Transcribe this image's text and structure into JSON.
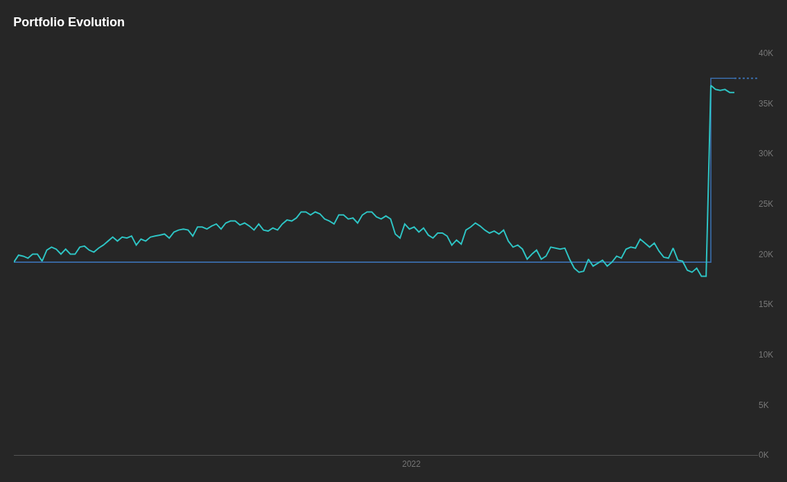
{
  "chart_data": {
    "type": "line",
    "title": "Portfolio Evolution",
    "annotations": [
      "2022"
    ],
    "categories": [
      null,
      null,
      null,
      null,
      null,
      null,
      null,
      null,
      null,
      null,
      null,
      null,
      null,
      null,
      null,
      null,
      null,
      null,
      null,
      null,
      null,
      null,
      null,
      null,
      null,
      null,
      null,
      null,
      null,
      null,
      null,
      null,
      null,
      null,
      null,
      null,
      null,
      null,
      null,
      null,
      null,
      null,
      null,
      null,
      null,
      null,
      null,
      null,
      null,
      null,
      null,
      null,
      null,
      null,
      null,
      null,
      null,
      null,
      null,
      null,
      null,
      null,
      null,
      null,
      null,
      null,
      null,
      null,
      null,
      null,
      null,
      null,
      null,
      null,
      null,
      null,
      null,
      null,
      null,
      null,
      null,
      null,
      null,
      null,
      null,
      null,
      null,
      null,
      null,
      null,
      null,
      null,
      null,
      null,
      null,
      null,
      null,
      null,
      null,
      null,
      null,
      null,
      null,
      null,
      null,
      null,
      null,
      null,
      null,
      null,
      null,
      null,
      null,
      null,
      null,
      null,
      null,
      null,
      null,
      null,
      null,
      null,
      null,
      null,
      null,
      null,
      null,
      null,
      null,
      null,
      null,
      null,
      null,
      null,
      null,
      null,
      null,
      null,
      null,
      null,
      null,
      null,
      null,
      null,
      null,
      null,
      null,
      null,
      null,
      null,
      null,
      null,
      null,
      null,
      null,
      null,
      null,
      null,
      null
    ],
    "ylim": [
      0,
      40
    ],
    "yticks": [
      {
        "value": 0,
        "label": "0K"
      },
      {
        "value": 5,
        "label": "5K"
      },
      {
        "value": 10,
        "label": "10K"
      },
      {
        "value": 15,
        "label": "15K"
      },
      {
        "value": 20,
        "label": "20K"
      },
      {
        "value": 25,
        "label": "25K"
      },
      {
        "value": 30,
        "label": "30K"
      },
      {
        "value": 35,
        "label": "35K"
      },
      {
        "value": 40,
        "label": "40K"
      }
    ],
    "grid": false,
    "marker": "none",
    "series": [
      {
        "type": "step",
        "color": "#3b6fae",
        "line_style": "solid",
        "values": [
          19.2,
          19.2,
          19.2,
          19.2,
          19.2,
          19.2,
          19.2,
          19.2,
          19.2,
          19.2,
          19.2,
          19.2,
          19.2,
          19.2,
          19.2,
          19.2,
          19.2,
          19.2,
          19.2,
          19.2,
          19.2,
          19.2,
          19.2,
          19.2,
          19.2,
          19.2,
          19.2,
          19.2,
          19.2,
          19.2,
          19.2,
          19.2,
          19.2,
          19.2,
          19.2,
          19.2,
          19.2,
          19.2,
          19.2,
          19.2,
          19.2,
          19.2,
          19.2,
          19.2,
          19.2,
          19.2,
          19.2,
          19.2,
          19.2,
          19.2,
          19.2,
          19.2,
          19.2,
          19.2,
          19.2,
          19.2,
          19.2,
          19.2,
          19.2,
          19.2,
          19.2,
          19.2,
          19.2,
          19.2,
          19.2,
          19.2,
          19.2,
          19.2,
          19.2,
          19.2,
          19.2,
          19.2,
          19.2,
          19.2,
          19.2,
          19.2,
          19.2,
          19.2,
          19.2,
          19.2,
          19.2,
          19.2,
          19.2,
          19.2,
          19.2,
          19.2,
          19.2,
          19.2,
          19.2,
          19.2,
          19.2,
          19.2,
          19.2,
          19.2,
          19.2,
          19.2,
          19.2,
          19.2,
          19.2,
          19.2,
          19.2,
          19.2,
          19.2,
          19.2,
          19.2,
          19.2,
          19.2,
          19.2,
          19.2,
          19.2,
          19.2,
          19.2,
          19.2,
          19.2,
          19.2,
          19.2,
          19.2,
          19.2,
          19.2,
          19.2,
          19.2,
          19.2,
          19.2,
          19.2,
          19.2,
          19.2,
          19.2,
          19.2,
          19.2,
          19.2,
          19.2,
          19.2,
          19.2,
          19.2,
          19.2,
          19.2,
          19.2,
          19.2,
          19.2,
          19.2,
          19.2,
          19.2,
          19.2,
          19.2,
          19.2,
          19.2,
          19.2,
          19.2,
          37.5,
          37.5,
          37.5,
          37.5,
          37.5,
          37.5,
          null,
          null,
          null,
          null,
          null
        ]
      },
      {
        "type": "line",
        "color": "#3b6fae",
        "line_style": "dotted",
        "values": [
          null,
          null,
          null,
          null,
          null,
          null,
          null,
          null,
          null,
          null,
          null,
          null,
          null,
          null,
          null,
          null,
          null,
          null,
          null,
          null,
          null,
          null,
          null,
          null,
          null,
          null,
          null,
          null,
          null,
          null,
          null,
          null,
          null,
          null,
          null,
          null,
          null,
          null,
          null,
          null,
          null,
          null,
          null,
          null,
          null,
          null,
          null,
          null,
          null,
          null,
          null,
          null,
          null,
          null,
          null,
          null,
          null,
          null,
          null,
          null,
          null,
          null,
          null,
          null,
          null,
          null,
          null,
          null,
          null,
          null,
          null,
          null,
          null,
          null,
          null,
          null,
          null,
          null,
          null,
          null,
          null,
          null,
          null,
          null,
          null,
          null,
          null,
          null,
          null,
          null,
          null,
          null,
          null,
          null,
          null,
          null,
          null,
          null,
          null,
          null,
          null,
          null,
          null,
          null,
          null,
          null,
          null,
          null,
          null,
          null,
          null,
          null,
          null,
          null,
          null,
          null,
          null,
          null,
          null,
          null,
          null,
          null,
          null,
          null,
          null,
          null,
          null,
          null,
          null,
          null,
          null,
          null,
          null,
          null,
          null,
          null,
          null,
          null,
          null,
          null,
          null,
          null,
          null,
          null,
          null,
          null,
          null,
          null,
          null,
          null,
          null,
          null,
          null,
          37.5,
          37.5,
          37.5,
          37.5,
          37.5,
          37.5
        ]
      },
      {
        "color": "#2ec4c4",
        "line_style": "solid",
        "values": [
          19.2,
          19.9,
          19.8,
          19.6,
          20.0,
          20.0,
          19.3,
          20.4,
          20.7,
          20.5,
          20.0,
          20.5,
          20.0,
          20.0,
          20.7,
          20.8,
          20.4,
          20.2,
          20.6,
          20.9,
          21.3,
          21.7,
          21.3,
          21.7,
          21.6,
          21.8,
          20.9,
          21.5,
          21.3,
          21.7,
          21.8,
          21.9,
          22.0,
          21.6,
          22.2,
          22.4,
          22.5,
          22.4,
          21.8,
          22.7,
          22.7,
          22.5,
          22.8,
          23.0,
          22.5,
          23.1,
          23.3,
          23.3,
          22.9,
          23.1,
          22.8,
          22.4,
          23.0,
          22.4,
          22.3,
          22.6,
          22.4,
          23.0,
          23.4,
          23.3,
          23.6,
          24.2,
          24.2,
          23.9,
          24.2,
          24.0,
          23.5,
          23.3,
          23.0,
          23.9,
          23.9,
          23.5,
          23.6,
          23.1,
          23.9,
          24.2,
          24.2,
          23.7,
          23.5,
          23.8,
          23.5,
          22.0,
          21.6,
          23.0,
          22.5,
          22.7,
          22.2,
          22.6,
          21.9,
          21.6,
          22.1,
          22.1,
          21.8,
          20.9,
          21.4,
          21.0,
          22.4,
          22.7,
          23.1,
          22.8,
          22.4,
          22.1,
          22.3,
          22.0,
          22.4,
          21.3,
          20.7,
          20.9,
          20.5,
          19.5,
          20.0,
          20.4,
          19.5,
          19.8,
          20.7,
          20.6,
          20.5,
          20.6,
          19.5,
          18.6,
          18.2,
          18.3,
          19.5,
          18.8,
          19.1,
          19.4,
          18.8,
          19.2,
          19.8,
          19.6,
          20.5,
          20.7,
          20.6,
          21.5,
          21.1,
          20.7,
          21.1,
          20.3,
          19.7,
          19.6,
          20.6,
          19.4,
          19.3,
          18.4,
          18.2,
          18.6,
          17.8,
          17.8,
          36.8,
          36.4,
          36.3,
          36.4,
          36.1,
          36.1,
          null,
          null,
          null,
          null,
          null
        ]
      }
    ]
  }
}
